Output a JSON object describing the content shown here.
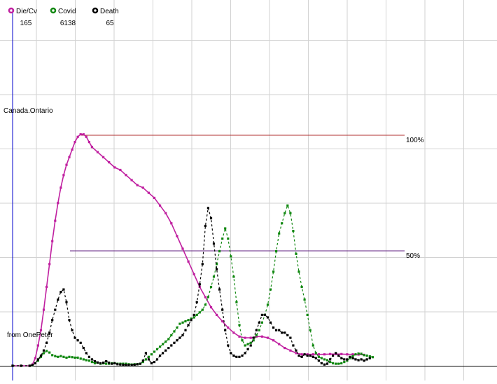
{
  "chart_data": {
    "type": "line",
    "title": "",
    "region_label": "Canada.Ontario",
    "source_label": "from OnePeter",
    "reference_lines": [
      {
        "label": "100%",
        "value": 100,
        "color": "#b03030"
      },
      {
        "label": "50%",
        "value": 50,
        "color": "#602080"
      }
    ],
    "grid": true,
    "legend_position": "top-left",
    "series": [
      {
        "name": "Die/Cv",
        "value_label": "165",
        "color": "#c020a0",
        "points": [
          [
            0,
            0
          ],
          [
            3,
            0
          ],
          [
            6,
            0
          ],
          [
            7,
            0.5
          ],
          [
            8,
            3
          ],
          [
            9,
            8
          ],
          [
            10,
            14
          ],
          [
            11,
            22
          ],
          [
            12,
            31
          ],
          [
            13,
            40
          ],
          [
            14,
            49
          ],
          [
            15,
            57
          ],
          [
            16,
            64
          ],
          [
            17,
            70
          ],
          [
            18,
            75
          ],
          [
            19,
            79
          ],
          [
            20,
            82
          ],
          [
            21,
            85
          ],
          [
            22,
            88
          ],
          [
            23,
            90
          ],
          [
            24,
            91
          ],
          [
            25,
            91
          ],
          [
            26,
            90
          ],
          [
            27,
            88
          ],
          [
            28,
            86
          ],
          [
            30,
            84
          ],
          [
            32,
            82
          ],
          [
            34,
            80
          ],
          [
            36,
            78
          ],
          [
            38,
            77
          ],
          [
            40,
            75
          ],
          [
            42,
            73
          ],
          [
            44,
            71
          ],
          [
            46,
            70
          ],
          [
            48,
            68
          ],
          [
            50,
            66
          ],
          [
            52,
            63
          ],
          [
            54,
            60
          ],
          [
            56,
            56
          ],
          [
            58,
            51
          ],
          [
            60,
            46
          ],
          [
            62,
            41
          ],
          [
            64,
            36
          ],
          [
            66,
            31
          ],
          [
            68,
            27
          ],
          [
            70,
            23
          ],
          [
            72,
            20
          ],
          [
            74,
            17.5
          ],
          [
            76,
            15
          ],
          [
            78,
            13
          ],
          [
            80,
            11.5
          ],
          [
            82,
            11
          ],
          [
            84,
            11
          ],
          [
            86,
            11.5
          ],
          [
            88,
            11.5
          ],
          [
            90,
            11
          ],
          [
            92,
            10
          ],
          [
            94,
            8.5
          ],
          [
            96,
            7
          ],
          [
            98,
            6
          ],
          [
            100,
            5
          ],
          [
            102,
            4.5
          ],
          [
            104,
            4.5
          ],
          [
            106,
            4.5
          ],
          [
            108,
            4.5
          ],
          [
            110,
            4.5
          ],
          [
            112,
            4.6
          ],
          [
            114,
            4.6
          ],
          [
            116,
            4.6
          ],
          [
            118,
            4.5
          ],
          [
            120,
            4.5
          ],
          [
            122,
            4.4
          ],
          [
            124,
            4.3
          ]
        ]
      },
      {
        "name": "Covid",
        "value_label": "6138",
        "color": "#118811",
        "points": [
          [
            0,
            0
          ],
          [
            3,
            0
          ],
          [
            6,
            0
          ],
          [
            7,
            0.2
          ],
          [
            8,
            1
          ],
          [
            9,
            2
          ],
          [
            10,
            3.5
          ],
          [
            11,
            5
          ],
          [
            12,
            5.8
          ],
          [
            13,
            5.2
          ],
          [
            14,
            4.2
          ],
          [
            15,
            3.8
          ],
          [
            16,
            3.5
          ],
          [
            17,
            3.8
          ],
          [
            18,
            3.5
          ],
          [
            19,
            3.2
          ],
          [
            20,
            3.5
          ],
          [
            21,
            3.4
          ],
          [
            22,
            3.2
          ],
          [
            23,
            3.2
          ],
          [
            24,
            2.8
          ],
          [
            25,
            2.5
          ],
          [
            26,
            2.2
          ],
          [
            27,
            2
          ],
          [
            28,
            1.5
          ],
          [
            29,
            1
          ],
          [
            30,
            1.2
          ],
          [
            31,
            0.8
          ],
          [
            32,
            1
          ],
          [
            33,
            0.8
          ],
          [
            34,
            0.8
          ],
          [
            35,
            1
          ],
          [
            36,
            1
          ],
          [
            37,
            0.8
          ],
          [
            38,
            0.8
          ],
          [
            39,
            0.8
          ],
          [
            40,
            0.8
          ],
          [
            41,
            0.6
          ],
          [
            42,
            0.5
          ],
          [
            43,
            0.6
          ],
          [
            44,
            0.6
          ],
          [
            45,
            0.8
          ],
          [
            46,
            1.5
          ],
          [
            47,
            2.5
          ],
          [
            48,
            3.5
          ],
          [
            49,
            4.5
          ],
          [
            50,
            5.5
          ],
          [
            51,
            6.5
          ],
          [
            52,
            7.5
          ],
          [
            53,
            8.5
          ],
          [
            54,
            9.5
          ],
          [
            55,
            10.5
          ],
          [
            56,
            12
          ],
          [
            57,
            13.5
          ],
          [
            58,
            15
          ],
          [
            59,
            16.5
          ],
          [
            60,
            17
          ],
          [
            61,
            17.5
          ],
          [
            62,
            18
          ],
          [
            63,
            18.5
          ],
          [
            64,
            19
          ],
          [
            65,
            20
          ],
          [
            66,
            21
          ],
          [
            67,
            22
          ],
          [
            68,
            24
          ],
          [
            69,
            27
          ],
          [
            70,
            31
          ],
          [
            71,
            35
          ],
          [
            72,
            40
          ],
          [
            73,
            45
          ],
          [
            74,
            50
          ],
          [
            75,
            54
          ],
          [
            76,
            50
          ],
          [
            77,
            43
          ],
          [
            78,
            35
          ],
          [
            79,
            25
          ],
          [
            80,
            16
          ],
          [
            81,
            10
          ],
          [
            82,
            8
          ],
          [
            83,
            8.5
          ],
          [
            84,
            9
          ],
          [
            85,
            10
          ],
          [
            86,
            12
          ],
          [
            87,
            14
          ],
          [
            88,
            17
          ],
          [
            89,
            20
          ],
          [
            90,
            24
          ],
          [
            91,
            30
          ],
          [
            92,
            37
          ],
          [
            93,
            45
          ],
          [
            94,
            52
          ],
          [
            95,
            56
          ],
          [
            96,
            60
          ],
          [
            97,
            63
          ],
          [
            98,
            60
          ],
          [
            99,
            53
          ],
          [
            100,
            44
          ],
          [
            101,
            37
          ],
          [
            102,
            31
          ],
          [
            103,
            26
          ],
          [
            104,
            20
          ],
          [
            105,
            14
          ],
          [
            106,
            8
          ],
          [
            107,
            5
          ],
          [
            108,
            3.5
          ],
          [
            109,
            3
          ],
          [
            110,
            2.5
          ],
          [
            111,
            2.2
          ],
          [
            112,
            1.5
          ],
          [
            113,
            1
          ],
          [
            114,
            0.8
          ],
          [
            115,
            0.8
          ],
          [
            116,
            1
          ],
          [
            117,
            1.5
          ],
          [
            118,
            2
          ],
          [
            119,
            3
          ],
          [
            120,
            3.8
          ],
          [
            121,
            4.5
          ],
          [
            122,
            4.8
          ],
          [
            123,
            4.7
          ],
          [
            124,
            4.2
          ],
          [
            125,
            4
          ],
          [
            126,
            3.7
          ],
          [
            127,
            3.4
          ]
        ]
      },
      {
        "name": "Death",
        "value_label": "65",
        "color": "#000000",
        "points": [
          [
            0,
            0
          ],
          [
            3,
            0
          ],
          [
            6,
            0
          ],
          [
            7,
            0.3
          ],
          [
            8,
            1
          ],
          [
            9,
            2.5
          ],
          [
            10,
            4
          ],
          [
            11,
            6
          ],
          [
            12,
            9
          ],
          [
            13,
            13
          ],
          [
            14,
            18
          ],
          [
            15,
            22
          ],
          [
            16,
            26
          ],
          [
            17,
            29
          ],
          [
            18,
            30
          ],
          [
            19,
            25
          ],
          [
            20,
            18
          ],
          [
            21,
            14
          ],
          [
            22,
            11
          ],
          [
            23,
            10
          ],
          [
            24,
            9
          ],
          [
            25,
            7
          ],
          [
            26,
            5
          ],
          [
            27,
            3.5
          ],
          [
            28,
            2.5
          ],
          [
            29,
            1.8
          ],
          [
            30,
            1.3
          ],
          [
            31,
            1
          ],
          [
            32,
            1.2
          ],
          [
            33,
            1.8
          ],
          [
            34,
            1.2
          ],
          [
            35,
            0.8
          ],
          [
            36,
            1
          ],
          [
            37,
            0.6
          ],
          [
            38,
            0.5
          ],
          [
            39,
            0.4
          ],
          [
            40,
            0.3
          ],
          [
            41,
            0.3
          ],
          [
            42,
            0.3
          ],
          [
            43,
            0.4
          ],
          [
            44,
            0.6
          ],
          [
            45,
            0.8
          ],
          [
            46,
            2
          ],
          [
            47,
            5
          ],
          [
            48,
            2.5
          ],
          [
            49,
            1
          ],
          [
            50,
            1.5
          ],
          [
            51,
            2.5
          ],
          [
            52,
            4
          ],
          [
            53,
            5
          ],
          [
            54,
            6
          ],
          [
            55,
            7
          ],
          [
            56,
            8
          ],
          [
            57,
            9
          ],
          [
            58,
            10
          ],
          [
            59,
            11
          ],
          [
            60,
            12
          ],
          [
            61,
            14
          ],
          [
            62,
            16
          ],
          [
            63,
            18
          ],
          [
            64,
            20
          ],
          [
            65,
            25
          ],
          [
            66,
            32
          ],
          [
            67,
            40
          ],
          [
            68,
            55
          ],
          [
            69,
            62
          ],
          [
            70,
            58
          ],
          [
            71,
            48
          ],
          [
            72,
            38
          ],
          [
            73,
            30
          ],
          [
            74,
            22
          ],
          [
            75,
            14
          ],
          [
            76,
            8
          ],
          [
            77,
            5
          ],
          [
            78,
            4
          ],
          [
            79,
            3.5
          ],
          [
            80,
            3.5
          ],
          [
            81,
            4
          ],
          [
            82,
            5
          ],
          [
            83,
            6.5
          ],
          [
            84,
            8
          ],
          [
            85,
            11
          ],
          [
            86,
            14
          ],
          [
            87,
            17
          ],
          [
            88,
            20
          ],
          [
            89,
            20
          ],
          [
            90,
            19
          ],
          [
            91,
            17
          ],
          [
            92,
            15
          ],
          [
            93,
            14
          ],
          [
            94,
            14
          ],
          [
            95,
            13
          ],
          [
            96,
            13
          ],
          [
            97,
            12
          ],
          [
            98,
            11
          ],
          [
            99,
            8
          ],
          [
            100,
            6
          ],
          [
            101,
            4
          ],
          [
            102,
            3.5
          ],
          [
            103,
            4.5
          ],
          [
            104,
            4
          ],
          [
            105,
            4
          ],
          [
            106,
            3.5
          ],
          [
            107,
            3
          ],
          [
            108,
            2
          ],
          [
            109,
            1
          ],
          [
            110,
            0.5
          ],
          [
            111,
            0.8
          ],
          [
            112,
            2.5
          ],
          [
            113,
            4
          ],
          [
            114,
            5
          ],
          [
            115,
            4
          ],
          [
            116,
            3
          ],
          [
            117,
            2.5
          ],
          [
            118,
            2.5
          ],
          [
            119,
            3.5
          ],
          [
            120,
            3
          ],
          [
            121,
            2.5
          ],
          [
            122,
            2.2
          ],
          [
            123,
            2.5
          ],
          [
            124,
            2
          ],
          [
            125,
            2.5
          ],
          [
            126,
            3
          ]
        ]
      }
    ]
  }
}
